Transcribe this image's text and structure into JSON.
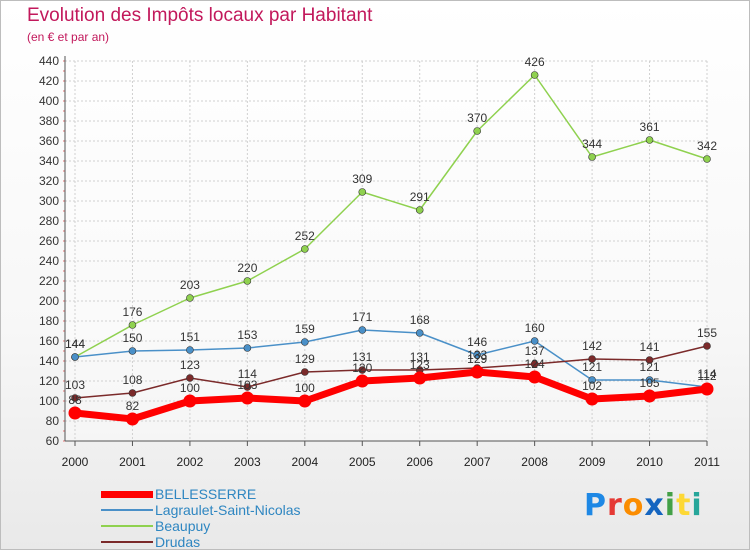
{
  "title": "Evolution des Impôts locaux par Habitant",
  "subtitle": "(en € et par an)",
  "brand": {
    "letters": [
      "P",
      "r",
      "o",
      "x",
      "i",
      "t",
      "i"
    ],
    "colors": [
      "#1e88e5",
      "#e53935",
      "#fb8c00",
      "#1565c0",
      "#43a047",
      "#fdd835",
      "#26a69a"
    ]
  },
  "chart_data": {
    "type": "line",
    "x": [
      "2000",
      "2001",
      "2002",
      "2003",
      "2004",
      "2005",
      "2006",
      "2007",
      "2008",
      "2009",
      "2010",
      "2011"
    ],
    "ylim": [
      60,
      440
    ],
    "yticks": [
      60,
      80,
      100,
      120,
      140,
      160,
      180,
      200,
      220,
      240,
      260,
      280,
      300,
      320,
      340,
      360,
      380,
      400,
      420,
      440
    ],
    "grid": true,
    "legend_position": "bottom-left",
    "series": [
      {
        "name": "BELLESSERRE",
        "color": "#ff0000",
        "values": [
          88,
          82,
          100,
          103,
          100,
          120,
          123,
          129,
          124,
          102,
          105,
          112
        ]
      },
      {
        "name": "Lagraulet-Saint-Nicolas",
        "color": "#4a90c8",
        "values": [
          144,
          150,
          151,
          153,
          159,
          171,
          168,
          146,
          160,
          121,
          121,
          114
        ]
      },
      {
        "name": "Beaupuy",
        "color": "#8fd14f",
        "values": [
          144,
          176,
          203,
          220,
          252,
          309,
          291,
          370,
          426,
          344,
          361,
          342
        ]
      },
      {
        "name": "Drudas",
        "color": "#7b2a2a",
        "values": [
          103,
          108,
          123,
          114,
          129,
          131,
          131,
          133,
          137,
          142,
          141,
          155
        ]
      }
    ]
  }
}
